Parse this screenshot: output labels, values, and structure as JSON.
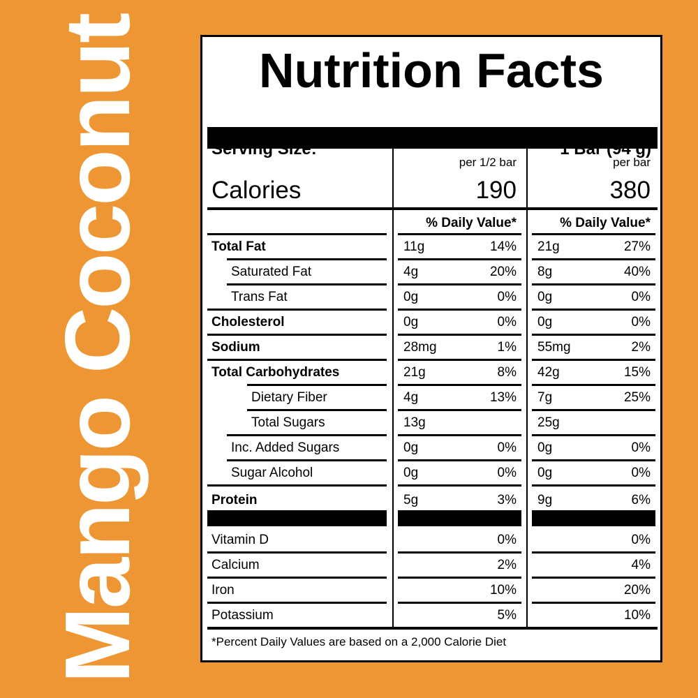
{
  "side_title": "Mango Coconut",
  "label": {
    "title": "Nutrition Facts",
    "serving_size_label": "Serving Size:",
    "serving_size_value": "1 Bar (94 g)",
    "calories_label": "Calories",
    "columns": [
      {
        "header": "per 1/2 bar",
        "calories": "190"
      },
      {
        "header": "per bar",
        "calories": "380"
      }
    ],
    "dv_header": "% Daily Value*",
    "nutrients": [
      {
        "name": "Total Fat",
        "bold": true,
        "indent": 0,
        "c1_amt": "11g",
        "c1_dv": "14%",
        "c2_amt": "21g",
        "c2_dv": "27%"
      },
      {
        "name": "Saturated Fat",
        "bold": false,
        "indent": 2,
        "c1_amt": "4g",
        "c1_dv": "20%",
        "c2_amt": "8g",
        "c2_dv": "40%"
      },
      {
        "name": "Trans Fat",
        "bold": false,
        "indent": 2,
        "c1_amt": "0g",
        "c1_dv": "0%",
        "c2_amt": "0g",
        "c2_dv": "0%"
      },
      {
        "name": "Cholesterol",
        "bold": true,
        "indent": 0,
        "c1_amt": "0g",
        "c1_dv": "0%",
        "c2_amt": "0g",
        "c2_dv": "0%"
      },
      {
        "name": "Sodium",
        "bold": true,
        "indent": 0,
        "c1_amt": "28mg",
        "c1_dv": "1%",
        "c2_amt": "55mg",
        "c2_dv": "2%"
      },
      {
        "name": "Total Carbohydrates",
        "bold": true,
        "indent": 0,
        "c1_amt": "21g",
        "c1_dv": "8%",
        "c2_amt": "42g",
        "c2_dv": "15%"
      },
      {
        "name": "Dietary Fiber",
        "bold": false,
        "indent": 1,
        "c1_amt": "4g",
        "c1_dv": "13%",
        "c2_amt": "7g",
        "c2_dv": "25%"
      },
      {
        "name": "Total Sugars",
        "bold": false,
        "indent": 1,
        "c1_amt": "13g",
        "c1_dv": "",
        "c2_amt": "25g",
        "c2_dv": ""
      },
      {
        "name": "Inc. Added Sugars",
        "bold": false,
        "indent": 2,
        "c1_amt": "0g",
        "c1_dv": "0%",
        "c2_amt": "0g",
        "c2_dv": "0%"
      },
      {
        "name": "Sugar Alcohol",
        "bold": false,
        "indent": 2,
        "c1_amt": "0g",
        "c1_dv": "0%",
        "c2_amt": "0g",
        "c2_dv": "0%"
      },
      {
        "name": "Protein",
        "bold": true,
        "indent": 0,
        "c1_amt": "5g",
        "c1_dv": "3%",
        "c2_amt": "9g",
        "c2_dv": "6%"
      }
    ],
    "vitamins": [
      {
        "name": "Vitamin D",
        "c1_dv": "0%",
        "c2_dv": "0%"
      },
      {
        "name": "Calcium",
        "c1_dv": "2%",
        "c2_dv": "4%"
      },
      {
        "name": "Iron",
        "c1_dv": "10%",
        "c2_dv": "20%"
      },
      {
        "name": "Potassium",
        "c1_dv": "5%",
        "c2_dv": "10%"
      }
    ],
    "footnote": "*Percent Daily Values are based on a 2,000 Calorie Diet"
  }
}
